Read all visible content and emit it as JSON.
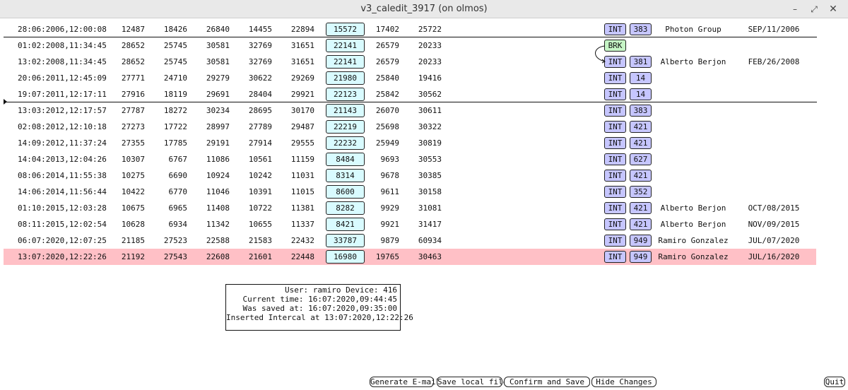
{
  "window": {
    "title": "v3_caledit_3917 (on olmos)"
  },
  "rows": [
    {
      "datetime": "28:06:2006,12:00:08",
      "v1": "12487",
      "v2": "18426",
      "v3": "26840",
      "v4": "14455",
      "v5": "22894",
      "boxed": "15572",
      "v7": "17402",
      "v8": "25722",
      "type": "INT",
      "code": "383",
      "name": "Photon Group",
      "date": "SEP/11/2006"
    },
    {
      "datetime": "01:02:2008,11:34:45",
      "v1": "28652",
      "v2": "25745",
      "v3": "30581",
      "v4": "32769",
      "v5": "31651",
      "boxed": "22141",
      "v7": "26579",
      "v8": "20233",
      "type": "BRK",
      "code": "",
      "name": "",
      "date": ""
    },
    {
      "datetime": "13:02:2008,11:34:45",
      "v1": "28652",
      "v2": "25745",
      "v3": "30581",
      "v4": "32769",
      "v5": "31651",
      "boxed": "22141",
      "v7": "26579",
      "v8": "20233",
      "type": "INT",
      "code": "381",
      "name": "Alberto Berjon",
      "date": "FEB/26/2008"
    },
    {
      "datetime": "20:06:2011,12:45:09",
      "v1": "27771",
      "v2": "24710",
      "v3": "29279",
      "v4": "30622",
      "v5": "29269",
      "boxed": "21980",
      "v7": "25840",
      "v8": "19416",
      "type": "INT",
      "code": "14",
      "name": "",
      "date": ""
    },
    {
      "datetime": "19:07:2011,12:17:11",
      "v1": "27916",
      "v2": "18119",
      "v3": "29691",
      "v4": "28404",
      "v5": "29921",
      "boxed": "22123",
      "v7": "25842",
      "v8": "30562",
      "type": "INT",
      "code": "14",
      "name": "",
      "date": ""
    },
    {
      "datetime": "13:03:2012,12:17:57",
      "v1": "27787",
      "v2": "18272",
      "v3": "30234",
      "v4": "28695",
      "v5": "30170",
      "boxed": "21143",
      "v7": "26070",
      "v8": "30611",
      "type": "INT",
      "code": "383",
      "name": "",
      "date": ""
    },
    {
      "datetime": "02:08:2012,12:10:18",
      "v1": "27273",
      "v2": "17722",
      "v3": "28997",
      "v4": "27789",
      "v5": "29487",
      "boxed": "22219",
      "v7": "25698",
      "v8": "30322",
      "type": "INT",
      "code": "421",
      "name": "",
      "date": ""
    },
    {
      "datetime": "14:09:2012,11:37:24",
      "v1": "27355",
      "v2": "17785",
      "v3": "29191",
      "v4": "27914",
      "v5": "29555",
      "boxed": "22232",
      "v7": "25949",
      "v8": "30819",
      "type": "INT",
      "code": "421",
      "name": "",
      "date": ""
    },
    {
      "datetime": "14:04:2013,12:04:26",
      "v1": "10307",
      "v2": "6767",
      "v3": "11086",
      "v4": "10561",
      "v5": "11159",
      "boxed": "8484",
      "v7": "9693",
      "v8": "30553",
      "type": "INT",
      "code": "627",
      "name": "",
      "date": ""
    },
    {
      "datetime": "08:06:2014,11:55:38",
      "v1": "10275",
      "v2": "6690",
      "v3": "10924",
      "v4": "10242",
      "v5": "11031",
      "boxed": "8314",
      "v7": "9678",
      "v8": "30385",
      "type": "INT",
      "code": "421",
      "name": "",
      "date": ""
    },
    {
      "datetime": "14:06:2014,11:56:44",
      "v1": "10422",
      "v2": "6770",
      "v3": "11046",
      "v4": "10391",
      "v5": "11015",
      "boxed": "8600",
      "v7": "9611",
      "v8": "30158",
      "type": "INT",
      "code": "352",
      "name": "",
      "date": ""
    },
    {
      "datetime": "01:10:2015,12:03:28",
      "v1": "10675",
      "v2": "6965",
      "v3": "11408",
      "v4": "10722",
      "v5": "11381",
      "boxed": "8282",
      "v7": "9929",
      "v8": "31081",
      "type": "INT",
      "code": "421",
      "name": "Alberto Berjon",
      "date": "OCT/08/2015"
    },
    {
      "datetime": "08:11:2015,12:02:54",
      "v1": "10628",
      "v2": "6934",
      "v3": "11342",
      "v4": "10655",
      "v5": "11337",
      "boxed": "8421",
      "v7": "9921",
      "v8": "31417",
      "type": "INT",
      "code": "421",
      "name": "Alberto Berjon",
      "date": "NOV/09/2015"
    },
    {
      "datetime": "06:07:2020,12:07:25",
      "v1": "21185",
      "v2": "27523",
      "v3": "22588",
      "v4": "21583",
      "v5": "22432",
      "boxed": "33787",
      "v7": "9879",
      "v8": "60934",
      "type": "INT",
      "code": "949",
      "name": "Ramiro Gonzalez",
      "date": "JUL/07/2020"
    },
    {
      "datetime": "13:07:2020,12:22:26",
      "v1": "21192",
      "v2": "27543",
      "v3": "22608",
      "v4": "21601",
      "v5": "22448",
      "boxed": "16980",
      "v7": "19765",
      "v8": "30463",
      "type": "INT",
      "code": "949",
      "name": "Ramiro Gonzalez",
      "date": "JUL/16/2020"
    }
  ],
  "info": {
    "user_line": "User: ramiro Device: 416",
    "current_time": "Current time: 16:07:2020,09:44:45",
    "saved_at": "Was saved at: 16:07:2020,09:35:00",
    "inserted": "Inserted Intercal at 13:07:2020,12:22:26"
  },
  "buttons": {
    "email": "Generate E-mail",
    "save_local": "Save local file",
    "confirm": "Confirm and Save",
    "hide": "Hide Changes",
    "quit": "Quit"
  },
  "colors": {
    "boxed_cell": "#d9fbff",
    "int_tag": "#c6c6ff",
    "brk_tag": "#c6f5c6",
    "highlight_row": "#ffc0c6"
  }
}
